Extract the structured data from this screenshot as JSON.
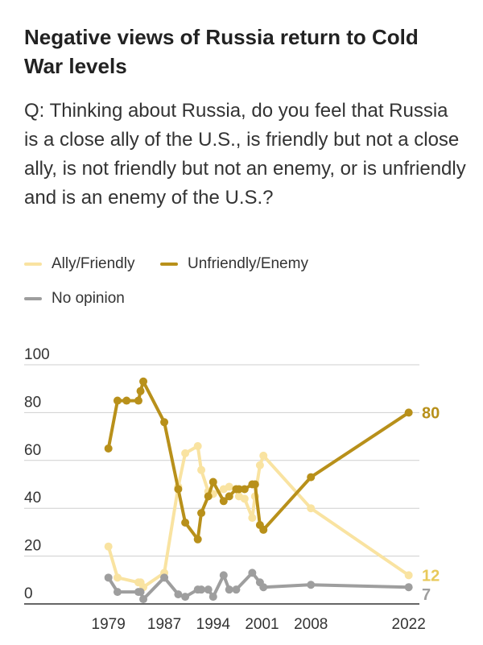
{
  "title": "Negative views of Russia return to Cold War levels",
  "question": "Q: Thinking about Russia, do you feel that Russia is a close ally of the U.S., is friendly but not a close ally, is not friendly but not an enemy, or is unfriendly and is an enemy of the U.S.?",
  "colors": {
    "ally": "#f9e3a1",
    "enemy": "#b8901a",
    "none": "#9e9e9e",
    "grid": "#cfcfcf",
    "axis": "#333333"
  },
  "chart_data": {
    "type": "line",
    "xlim": [
      1978,
      2022.5
    ],
    "ylim": [
      0,
      100
    ],
    "y_ticks": [
      0,
      20,
      40,
      60,
      80,
      100
    ],
    "x_ticks": [
      1979,
      1987,
      1994,
      2001,
      2008,
      2022
    ],
    "x_tick_labels": [
      "1979",
      "1987",
      "1994",
      "2001",
      "2008",
      "2022"
    ],
    "legend": [
      "Ally/Friendly",
      "Unfriendly/Enemy",
      "No opinion"
    ],
    "series": [
      {
        "name": "Ally/Friendly",
        "key": "ally",
        "end_label": "12",
        "points": [
          [
            1979,
            24
          ],
          [
            1980.3,
            11
          ],
          [
            1983.3,
            9
          ],
          [
            1983.6,
            9
          ],
          [
            1984,
            7
          ],
          [
            1987,
            13
          ],
          [
            1989,
            49
          ],
          [
            1990,
            63
          ],
          [
            1991.8,
            66
          ],
          [
            1992.3,
            56
          ],
          [
            1993.3,
            47
          ],
          [
            1994,
            46
          ],
          [
            1995.5,
            48
          ],
          [
            1996.3,
            49
          ],
          [
            1997.3,
            48
          ],
          [
            1997.7,
            45
          ],
          [
            1998.5,
            44
          ],
          [
            1999.6,
            36
          ],
          [
            2000,
            45
          ],
          [
            2000.7,
            58
          ],
          [
            2001.2,
            62
          ],
          [
            2008,
            40
          ],
          [
            2022,
            12
          ]
        ]
      },
      {
        "name": "Unfriendly/Enemy",
        "key": "enemy",
        "end_label": "80",
        "points": [
          [
            1979,
            65
          ],
          [
            1980.3,
            85
          ],
          [
            1981.6,
            85
          ],
          [
            1983.3,
            85
          ],
          [
            1983.6,
            89
          ],
          [
            1984,
            93
          ],
          [
            1987,
            76
          ],
          [
            1989,
            48
          ],
          [
            1990,
            34
          ],
          [
            1991.8,
            27
          ],
          [
            1992.3,
            38
          ],
          [
            1993.3,
            45
          ],
          [
            1994,
            51
          ],
          [
            1995.5,
            43
          ],
          [
            1996.3,
            45
          ],
          [
            1997.3,
            48
          ],
          [
            1997.7,
            48
          ],
          [
            1998.5,
            48
          ],
          [
            1999.6,
            50
          ],
          [
            2000,
            50
          ],
          [
            2000.7,
            33
          ],
          [
            2001.2,
            31
          ],
          [
            2008,
            53
          ],
          [
            2022,
            80
          ]
        ]
      },
      {
        "name": "No opinion",
        "key": "none",
        "end_label": "7",
        "points": [
          [
            1979,
            11
          ],
          [
            1980.3,
            5
          ],
          [
            1983.3,
            5
          ],
          [
            1983.6,
            5
          ],
          [
            1984,
            2
          ],
          [
            1987,
            11
          ],
          [
            1989,
            4
          ],
          [
            1990,
            3
          ],
          [
            1991.8,
            6
          ],
          [
            1992.3,
            6
          ],
          [
            1993.3,
            6
          ],
          [
            1994,
            3
          ],
          [
            1995.5,
            12
          ],
          [
            1996.3,
            6
          ],
          [
            1997.3,
            6
          ],
          [
            1999.6,
            13
          ],
          [
            2000.7,
            9
          ],
          [
            2001.2,
            7
          ],
          [
            2008,
            8
          ],
          [
            2022,
            7
          ]
        ]
      }
    ]
  }
}
